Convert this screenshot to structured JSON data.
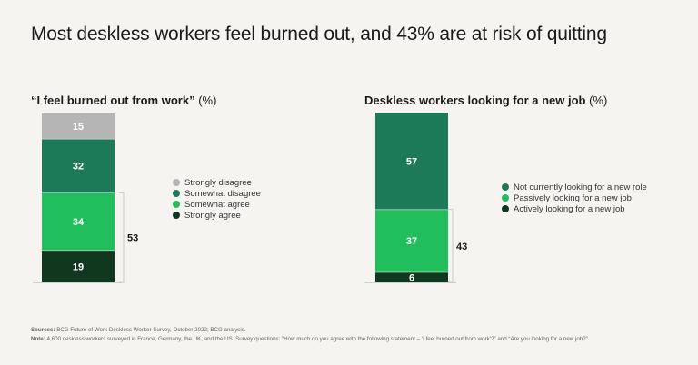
{
  "page": {
    "title": "Most deskless workers feel burned out, and 43% are at risk of quitting"
  },
  "colors": {
    "gray": "#b5b5b5",
    "mid_green": "#1d7a59",
    "bright_green": "#21bf5b",
    "dark_green": "#10381f"
  },
  "chart_data": [
    {
      "type": "bar",
      "stacked": true,
      "title": "“I feel burned out from work”",
      "unit": "(%)",
      "ylim": [
        0,
        100
      ],
      "segments": [
        {
          "name": "Strongly agree",
          "value": 19,
          "color": "#10381f"
        },
        {
          "name": "Somewhat agree",
          "value": 34,
          "color": "#21bf5b"
        },
        {
          "name": "Somewhat disagree",
          "value": 32,
          "color": "#1d7a59"
        },
        {
          "name": "Strongly disagree",
          "value": 15,
          "color": "#b5b5b5"
        }
      ],
      "legend": [
        {
          "label": "Strongly disagree",
          "color": "#b5b5b5"
        },
        {
          "label": "Somewhat disagree",
          "color": "#1d7a59"
        },
        {
          "label": "Somewhat agree",
          "color": "#21bf5b"
        },
        {
          "label": "Strongly agree",
          "color": "#10381f"
        }
      ],
      "bracket": {
        "from": 0,
        "to": 53,
        "label": "53"
      }
    },
    {
      "type": "bar",
      "stacked": true,
      "title": "Deskless workers looking for a new job",
      "unit": "(%)",
      "ylim": [
        0,
        100
      ],
      "segments": [
        {
          "name": "Actively looking for a new job",
          "value": 6,
          "color": "#10381f"
        },
        {
          "name": "Passively looking for a new job",
          "value": 37,
          "color": "#21bf5b"
        },
        {
          "name": "Not currently looking for a new role",
          "value": 57,
          "color": "#1d7a59"
        }
      ],
      "legend": [
        {
          "label": "Not currently looking for a new role",
          "color": "#1d7a59"
        },
        {
          "label": "Passively looking for a new job",
          "color": "#21bf5b"
        },
        {
          "label": "Actively looking for a new job",
          "color": "#10381f"
        }
      ],
      "bracket": {
        "from": 0,
        "to": 43,
        "label": "43"
      }
    }
  ],
  "footer": {
    "sources_label": "Sources:",
    "sources_text": " BCG Future of Work Deskless Worker Survey, October 2022; BCG analysis.",
    "note_label": "Note:",
    "note_text": " 4,600 deskless workers surveyed in France, Germany, the UK, and the US. Survey questions: “How much do you agree with the following statement – ‘I feel burned out from work’?” and “Are you looking for a new job?”"
  }
}
